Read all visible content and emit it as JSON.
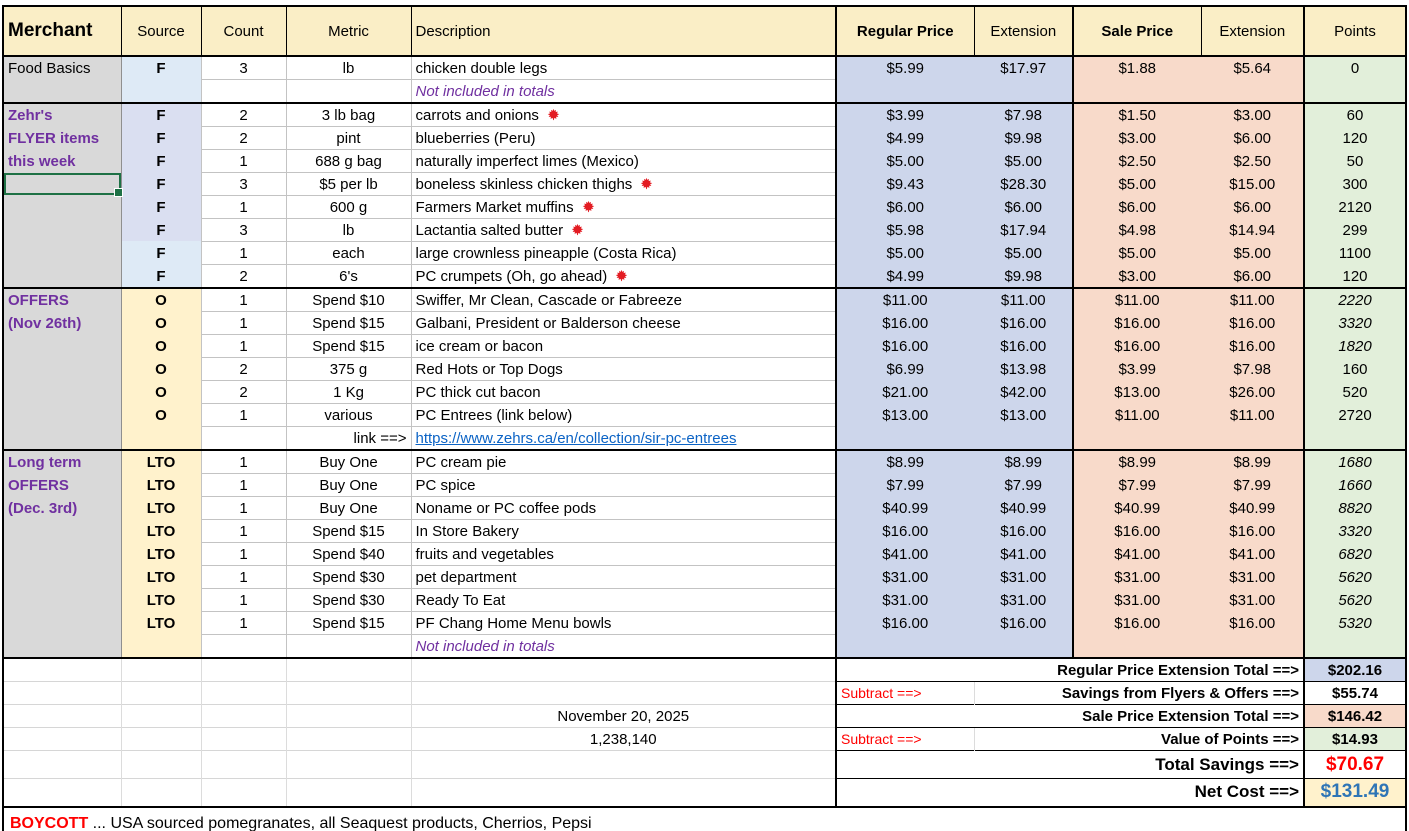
{
  "header": {
    "columns": [
      {
        "label": "Merchant",
        "bold": true,
        "big": true,
        "align": "left"
      },
      {
        "label": "Source"
      },
      {
        "label": "Count"
      },
      {
        "label": "Metric"
      },
      {
        "label": "Description",
        "align": "left"
      },
      {
        "label": "Regular Price",
        "bold": true,
        "thick_left": true
      },
      {
        "label": "Extension"
      },
      {
        "label": "Sale Price",
        "bold": true,
        "thick_left": true
      },
      {
        "label": "Extension"
      },
      {
        "label": "Points",
        "thick_left": true
      }
    ]
  },
  "blocks": [
    {
      "name": "food-basics",
      "rows": [
        {
          "merchant": "Food Basics",
          "mcolor": "black",
          "source": "F",
          "sbg": "#DEEAF6",
          "count": "3",
          "metric": "lb",
          "desc": "chicken double legs",
          "reg": "$5.99",
          "rege": "$17.97",
          "sale": "$1.88",
          "salee": "$5.64",
          "points": "0"
        },
        {
          "sbg": "#DEEAF6",
          "note": "Not included in totals"
        }
      ]
    },
    {
      "name": "zehrs-flyer",
      "rows": [
        {
          "merchant": "Zehr's",
          "source": "F",
          "sbg": "#DADFF1",
          "count": "2",
          "metric": "3 lb bag",
          "desc": "carrots and onions",
          "maple": true,
          "reg": "$3.99",
          "rege": "$7.98",
          "sale": "$1.50",
          "salee": "$3.00",
          "points": "60"
        },
        {
          "merchant": "FLYER items",
          "source": "F",
          "sbg": "#DADFF1",
          "count": "2",
          "metric": "pint",
          "desc": "blueberries (Peru)",
          "reg": "$4.99",
          "rege": "$9.98",
          "sale": "$3.00",
          "salee": "$6.00",
          "points": "120"
        },
        {
          "merchant": "this week",
          "source": "F",
          "sbg": "#DADFF1",
          "count": "1",
          "metric": "688 g bag",
          "desc": "naturally imperfect limes (Mexico)",
          "reg": "$5.00",
          "rege": "$5.00",
          "sale": "$2.50",
          "salee": "$2.50",
          "points": "50"
        },
        {
          "selected": true,
          "source": "F",
          "sbg": "#DADFF1",
          "count": "3",
          "metric": "$5 per lb",
          "desc": "boneless skinless chicken thighs",
          "maple": true,
          "reg": "$9.43",
          "rege": "$28.30",
          "sale": "$5.00",
          "salee": "$15.00",
          "points": "300"
        },
        {
          "source": "F",
          "sbg": "#DADFF1",
          "count": "1",
          "metric": "600 g",
          "desc": "Farmers Market muffins",
          "maple": true,
          "reg": "$6.00",
          "rege": "$6.00",
          "sale": "$6.00",
          "salee": "$6.00",
          "points": "2120"
        },
        {
          "source": "F",
          "sbg": "#DADFF1",
          "count": "3",
          "metric": "lb",
          "desc": "Lactantia salted butter",
          "maple": true,
          "reg": "$5.98",
          "rege": "$17.94",
          "sale": "$4.98",
          "salee": "$14.94",
          "points": "299"
        },
        {
          "source": "F",
          "sbg": "#DEEAF6",
          "count": "1",
          "metric": "each",
          "desc": "large crownless pineapple (Costa Rica)",
          "reg": "$5.00",
          "rege": "$5.00",
          "sale": "$5.00",
          "salee": "$5.00",
          "points": "1100"
        },
        {
          "source": "F",
          "sbg": "#DEEAF6",
          "count": "2",
          "metric": "6's",
          "desc": "PC crumpets (Oh, go ahead)",
          "maple": true,
          "reg": "$4.99",
          "rege": "$9.98",
          "sale": "$3.00",
          "salee": "$6.00",
          "points": "120"
        }
      ]
    },
    {
      "name": "offers-nov-26",
      "rows": [
        {
          "merchant": "OFFERS",
          "source": "O",
          "sbg": "#FFF2CC",
          "count": "1",
          "metric": "Spend $10",
          "desc": "Swiffer, Mr Clean, Cascade or Fabreeze",
          "reg": "$11.00",
          "rege": "$11.00",
          "sale": "$11.00",
          "salee": "$11.00",
          "points": "2220",
          "pitalic": true
        },
        {
          "merchant": "(Nov 26th)",
          "source": "O",
          "sbg": "#FFF2CC",
          "count": "1",
          "metric": "Spend $15",
          "desc": "Galbani, President or Balderson cheese",
          "reg": "$16.00",
          "rege": "$16.00",
          "sale": "$16.00",
          "salee": "$16.00",
          "points": "3320",
          "pitalic": true
        },
        {
          "source": "O",
          "sbg": "#FFF2CC",
          "count": "1",
          "metric": "Spend $15",
          "desc": "ice cream or bacon",
          "reg": "$16.00",
          "rege": "$16.00",
          "sale": "$16.00",
          "salee": "$16.00",
          "points": "1820",
          "pitalic": true
        },
        {
          "source": "O",
          "sbg": "#FFF2CC",
          "count": "2",
          "metric": "375 g",
          "desc": "Red Hots or Top Dogs",
          "reg": "$6.99",
          "rege": "$13.98",
          "sale": "$3.99",
          "salee": "$7.98",
          "points": "160"
        },
        {
          "source": "O",
          "sbg": "#FFF2CC",
          "count": "2",
          "metric": "1 Kg",
          "desc": "PC thick cut bacon",
          "reg": "$21.00",
          "rege": "$42.00",
          "sale": "$13.00",
          "salee": "$26.00",
          "points": "520"
        },
        {
          "source": "O",
          "sbg": "#FFF2CC",
          "count": "1",
          "metric": "various",
          "desc": "PC Entrees (link below)",
          "reg": "$13.00",
          "rege": "$13.00",
          "sale": "$11.00",
          "salee": "$11.00",
          "points": "2720"
        },
        {
          "sbg": "#FFF2CC",
          "metric": "link ==>",
          "malign": "right",
          "link": "https://www.zehrs.ca/en/collection/sir-pc-entrees"
        }
      ]
    },
    {
      "name": "long-term-offers-dec-3",
      "rows": [
        {
          "merchant": "Long term",
          "source": "LTO",
          "sbg": "#FFF2CC",
          "count": "1",
          "metric": "Buy One",
          "desc": "PC cream pie",
          "reg": "$8.99",
          "rege": "$8.99",
          "sale": "$8.99",
          "salee": "$8.99",
          "points": "1680",
          "pitalic": true
        },
        {
          "merchant": "OFFERS",
          "source": "LTO",
          "sbg": "#FFF2CC",
          "count": "1",
          "metric": "Buy One",
          "desc": "PC spice",
          "reg": "$7.99",
          "rege": "$7.99",
          "sale": "$7.99",
          "salee": "$7.99",
          "points": "1660",
          "pitalic": true
        },
        {
          "merchant": "(Dec. 3rd)",
          "source": "LTO",
          "sbg": "#FFF2CC",
          "count": "1",
          "metric": "Buy One",
          "desc": "Noname or PC coffee pods",
          "reg": "$40.99",
          "rege": "$40.99",
          "sale": "$40.99",
          "salee": "$40.99",
          "points": "8820",
          "pitalic": true
        },
        {
          "source": "LTO",
          "sbg": "#FFF2CC",
          "count": "1",
          "metric": "Spend $15",
          "desc": "In Store Bakery",
          "reg": "$16.00",
          "rege": "$16.00",
          "sale": "$16.00",
          "salee": "$16.00",
          "points": "3320",
          "pitalic": true
        },
        {
          "source": "LTO",
          "sbg": "#FFF2CC",
          "count": "1",
          "metric": "Spend $40",
          "desc": "fruits and vegetables",
          "reg": "$41.00",
          "rege": "$41.00",
          "sale": "$41.00",
          "salee": "$41.00",
          "points": "6820",
          "pitalic": true
        },
        {
          "source": "LTO",
          "sbg": "#FFF2CC",
          "count": "1",
          "metric": "Spend $30",
          "desc": "pet department",
          "reg": "$31.00",
          "rege": "$31.00",
          "sale": "$31.00",
          "salee": "$31.00",
          "points": "5620",
          "pitalic": true
        },
        {
          "source": "LTO",
          "sbg": "#FFF2CC",
          "count": "1",
          "metric": "Spend $30",
          "desc": "Ready To Eat",
          "reg": "$31.00",
          "rege": "$31.00",
          "sale": "$31.00",
          "salee": "$31.00",
          "points": "5620",
          "pitalic": true
        },
        {
          "source": "LTO",
          "sbg": "#FFF2CC",
          "count": "1",
          "metric": "Spend $15",
          "desc": "PF Chang Home Menu bowls",
          "reg": "$16.00",
          "rege": "$16.00",
          "sale": "$16.00",
          "salee": "$16.00",
          "points": "5320",
          "pitalic": true
        },
        {
          "sbg": "#FFF2CC",
          "note": "Not included in totals"
        }
      ]
    }
  ],
  "totals": [
    {
      "label": "Regular Price Extension Total ==>",
      "value": "$202.16",
      "vbg": "#CDD6EB"
    },
    {
      "subtract": "Subtract ==>",
      "label": "Savings from Flyers & Offers ==>",
      "value": "$55.74",
      "vbg": "#FFFFFF"
    },
    {
      "label": "Sale Price Extension Total  ==>",
      "value": "$146.42",
      "vbg": "#F8DACA",
      "desc": "November 20, 2025"
    },
    {
      "subtract": "Subtract ==>",
      "label": "Value of Points ==>",
      "value": "$14.93",
      "vbg": "#E2EFDA",
      "desc": "1,238,140"
    },
    {
      "label": "Total Savings  ==>",
      "value": "$70.67",
      "vbg": "#FFFFFF",
      "vcolor": "#FF0000",
      "big": true
    },
    {
      "label": "Net Cost  ==>",
      "value": "$131.49",
      "vbg": "#FFF2CC",
      "vcolor": "#2E75B6",
      "big": true
    }
  ],
  "boycott": {
    "word": "BOYCOTT",
    "rest": " ... USA sourced pomegranates, all Seaquest products, Cherrios, Pepsi"
  },
  "colors": {
    "header_bg": "#FAEEC6",
    "merchant_bg": "#D9D9D9",
    "source_blue": "#DEEAF6",
    "source_lavender": "#DADFF1",
    "source_cream": "#FFF2CC",
    "regular_bg": "#CDD6EB",
    "sale_bg": "#F8DACA",
    "points_bg": "#E2EFDA",
    "purple": "#7030A0",
    "red": "#FF0000",
    "link_blue": "#0B63C5",
    "netcost_blue": "#2E75B6",
    "selection_green": "#1E7145"
  }
}
